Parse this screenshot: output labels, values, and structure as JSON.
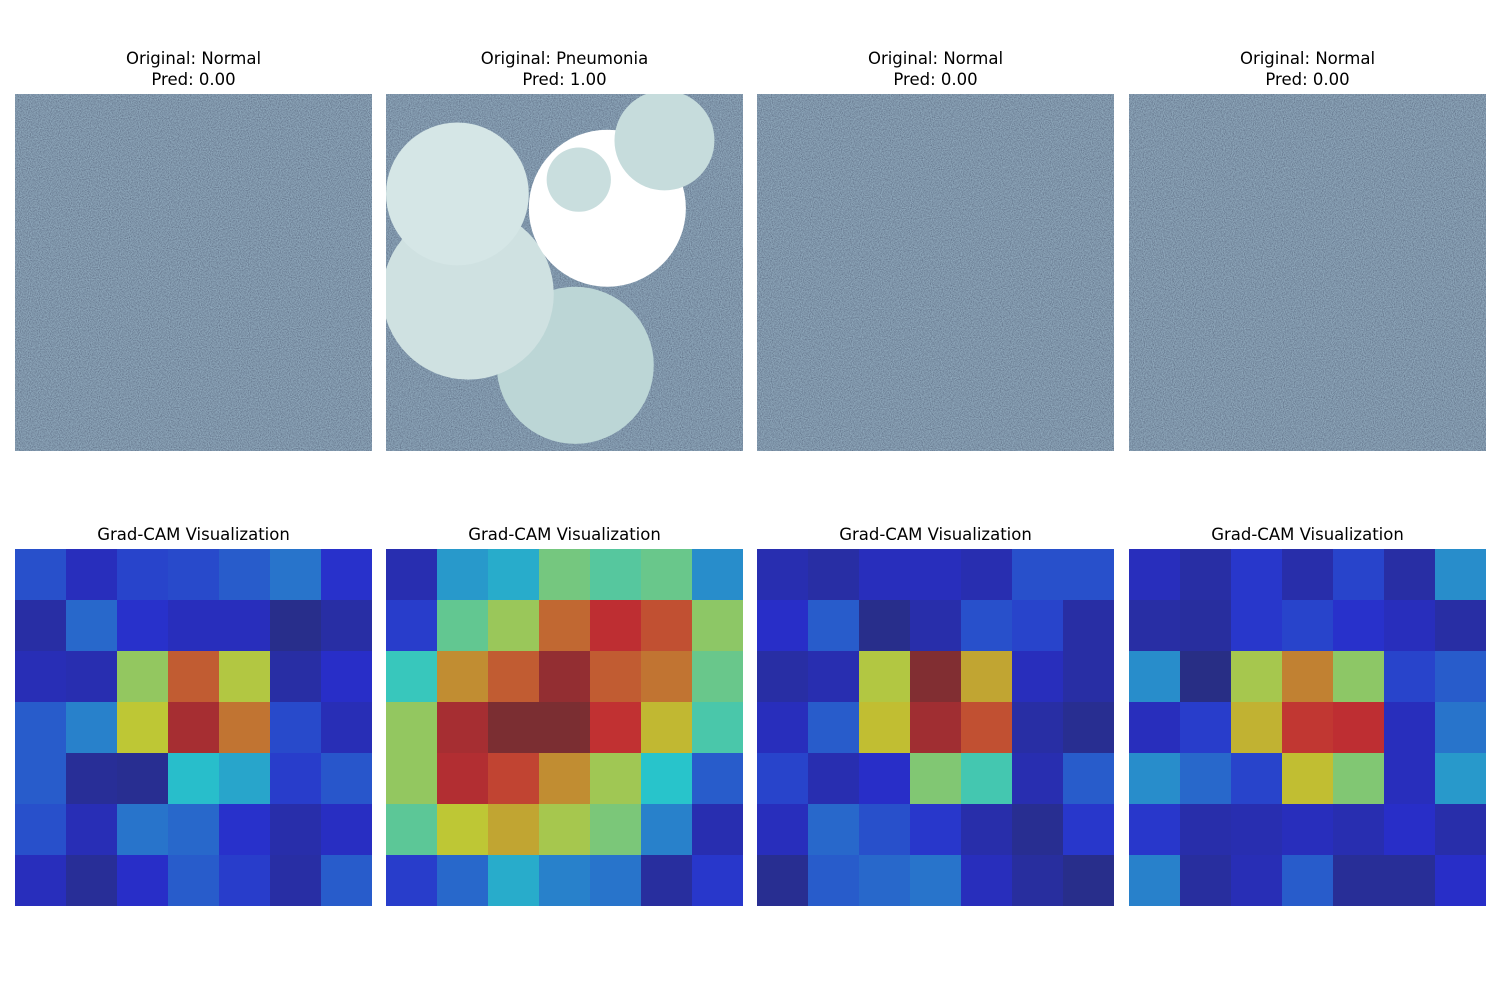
{
  "figure": {
    "originals": [
      {
        "title": "Original: Normal",
        "pred": "Pred: 0.00"
      },
      {
        "title": "Original: Pneumonia",
        "pred": "Pred: 1.00"
      },
      {
        "title": "Original: Normal",
        "pred": "Pred: 0.00"
      },
      {
        "title": "Original: Normal",
        "pred": "Pred: 0.00"
      }
    ],
    "gradcam_title": "Grad-CAM Visualization"
  },
  "chart_data": {
    "type": "heatmap",
    "colormap": "jet",
    "overlay_alpha": 0.4,
    "grid": false,
    "panels": [
      {
        "label": "Normal",
        "prediction": 0.0
      },
      {
        "label": "Pneumonia",
        "prediction": 1.0
      },
      {
        "label": "Normal",
        "prediction": 0.0
      },
      {
        "label": "Normal",
        "prediction": 0.0
      }
    ],
    "heatmaps": [
      [
        [
          0.18,
          0.1,
          0.16,
          0.17,
          0.2,
          0.24,
          0.13
        ],
        [
          0.06,
          0.22,
          0.13,
          0.1,
          0.1,
          0.02,
          0.06
        ],
        [
          0.09,
          0.08,
          0.55,
          0.8,
          0.6,
          0.06,
          0.12
        ],
        [
          0.2,
          0.26,
          0.62,
          0.92,
          0.76,
          0.17,
          0.09
        ],
        [
          0.2,
          0.04,
          0.03,
          0.36,
          0.32,
          0.15,
          0.19
        ],
        [
          0.18,
          0.09,
          0.24,
          0.22,
          0.13,
          0.07,
          0.11
        ],
        [
          0.1,
          0.04,
          0.12,
          0.2,
          0.15,
          0.06,
          0.2
        ]
      ],
      [
        [
          0.08,
          0.3,
          0.33,
          0.5,
          0.45,
          0.48,
          0.28
        ],
        [
          0.15,
          0.47,
          0.56,
          0.78,
          0.88,
          0.82,
          0.54
        ],
        [
          0.4,
          0.72,
          0.8,
          0.95,
          0.8,
          0.76,
          0.48
        ],
        [
          0.55,
          0.92,
          0.99,
          0.99,
          0.87,
          0.65,
          0.43
        ],
        [
          0.55,
          0.9,
          0.84,
          0.72,
          0.57,
          0.37,
          0.2
        ],
        [
          0.46,
          0.62,
          0.68,
          0.58,
          0.51,
          0.26,
          0.08
        ],
        [
          0.15,
          0.22,
          0.33,
          0.26,
          0.24,
          0.05,
          0.14
        ]
      ],
      [
        [
          0.08,
          0.06,
          0.1,
          0.1,
          0.08,
          0.18,
          0.18
        ],
        [
          0.12,
          0.2,
          0.02,
          0.07,
          0.18,
          0.16,
          0.06
        ],
        [
          0.06,
          0.08,
          0.6,
          0.98,
          0.68,
          0.1,
          0.06
        ],
        [
          0.1,
          0.2,
          0.64,
          0.93,
          0.82,
          0.06,
          0.03
        ],
        [
          0.16,
          0.08,
          0.12,
          0.52,
          0.42,
          0.08,
          0.2
        ],
        [
          0.1,
          0.22,
          0.18,
          0.14,
          0.07,
          0.03,
          0.14
        ],
        [
          0.03,
          0.2,
          0.22,
          0.24,
          0.1,
          0.05,
          0.02
        ]
      ],
      [
        [
          0.1,
          0.06,
          0.14,
          0.07,
          0.16,
          0.06,
          0.28
        ],
        [
          0.06,
          0.05,
          0.14,
          0.16,
          0.13,
          0.1,
          0.06
        ],
        [
          0.28,
          0.01,
          0.58,
          0.74,
          0.54,
          0.16,
          0.2
        ],
        [
          0.1,
          0.15,
          0.66,
          0.86,
          0.88,
          0.1,
          0.24
        ],
        [
          0.28,
          0.22,
          0.16,
          0.64,
          0.52,
          0.1,
          0.3
        ],
        [
          0.14,
          0.07,
          0.08,
          0.1,
          0.08,
          0.12,
          0.07
        ],
        [
          0.26,
          0.05,
          0.09,
          0.2,
          0.04,
          0.04,
          0.12
        ]
      ]
    ],
    "lesions": [
      [],
      [
        {
          "cx": 0.53,
          "cy": 0.76,
          "r": 0.22,
          "shade": "#bcd6d6"
        },
        {
          "cx": 0.23,
          "cy": 0.56,
          "r": 0.24,
          "shade": "#cfe1e1"
        },
        {
          "cx": 0.2,
          "cy": 0.28,
          "r": 0.2,
          "shade": "#d5e6e6"
        },
        {
          "cx": 0.62,
          "cy": 0.32,
          "r": 0.22,
          "shade": "#ffffff"
        },
        {
          "cx": 0.54,
          "cy": 0.24,
          "r": 0.09,
          "shade": "#c9dede"
        },
        {
          "cx": 0.78,
          "cy": 0.13,
          "r": 0.14,
          "shade": "#c6dcdc"
        }
      ],
      [],
      []
    ]
  }
}
